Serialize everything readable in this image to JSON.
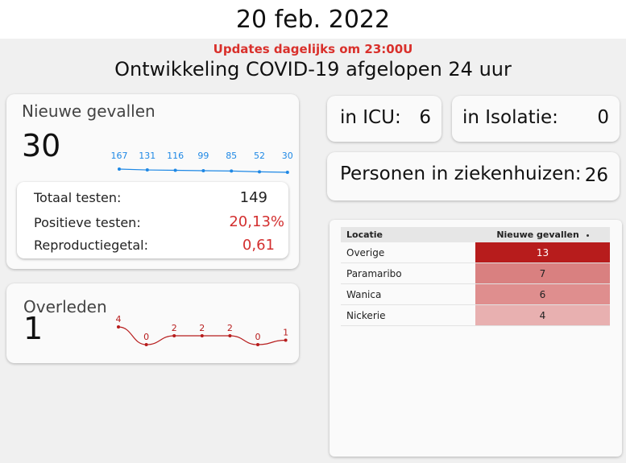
{
  "header": {
    "date": "20 feb. 2022",
    "updates": "Updates dagelijks om 23:00U",
    "subtitle": "Ontwikkeling COVID-19 afgelopen 24 uur"
  },
  "new_cases": {
    "title": "Nieuwe gevallen",
    "value": "30",
    "trend": [
      167,
      131,
      116,
      99,
      85,
      52,
      30
    ],
    "trend_color": "#1e88e5",
    "stats": [
      {
        "label": "Totaal testen:",
        "value": "149",
        "highlight": false
      },
      {
        "label": "Positieve testen:",
        "value": "20,13%",
        "highlight": true
      },
      {
        "label": "Reproductiegetal:",
        "value": "0,61",
        "highlight": true
      }
    ]
  },
  "deaths": {
    "title": "Overleden",
    "value": "1",
    "trend": [
      4,
      0,
      2,
      2,
      2,
      0,
      1
    ],
    "trend_color": "#b71c1c"
  },
  "icu": {
    "label": "in ICU:",
    "value": "6"
  },
  "isolation": {
    "label": "in Isolatie:",
    "value": "0"
  },
  "hospital": {
    "label": "Personen in ziekenhuizen:",
    "value": "26"
  },
  "table": {
    "columns": [
      "Locatie",
      "Nieuwe gevallen"
    ],
    "sort_icon": "sort-indicator-icon",
    "rows": [
      {
        "location": "Overige",
        "cases": 13,
        "color": "#b71c1c"
      },
      {
        "location": "Paramaribo",
        "cases": 7,
        "color": "#d98080"
      },
      {
        "location": "Wanica",
        "cases": 6,
        "color": "#df8e8e"
      },
      {
        "location": "Nickerie",
        "cases": 4,
        "color": "#e8b0b0"
      }
    ]
  }
}
